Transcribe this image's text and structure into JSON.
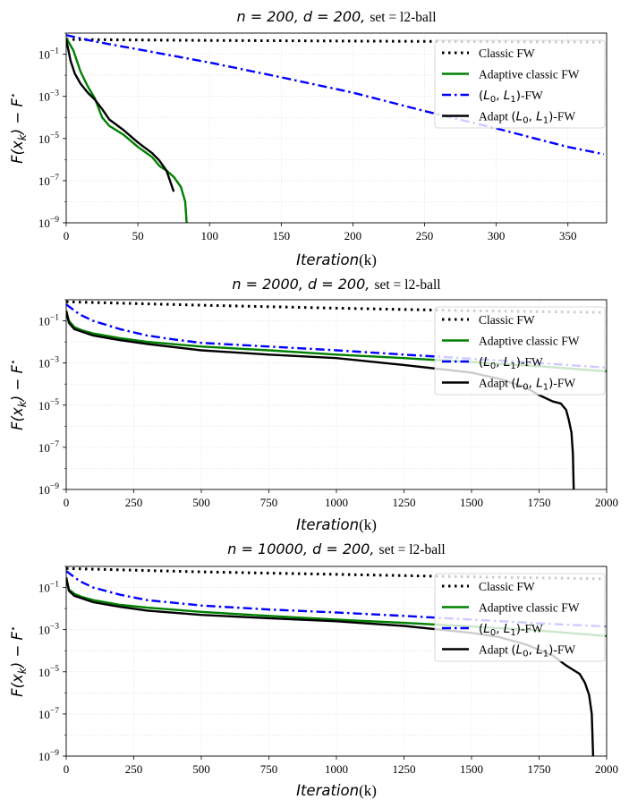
{
  "figure": {
    "ylabel": "F(x_k) − F*",
    "xlabel": "Iteration(k)"
  },
  "legend": {
    "placement": "upper-right"
  },
  "colors": {
    "classic": "#000000",
    "adaptive": "#008000",
    "l0l1": "#0000ff",
    "adapt_l0l1": "#000000"
  },
  "chart_data": [
    {
      "type": "line",
      "title": {
        "math": "n = 200, d = 200,",
        "rest": "set = l2-ball"
      },
      "xlim": [
        0,
        377
      ],
      "ylim": [
        1e-09,
        1
      ],
      "yscale": "log",
      "grid": true,
      "x_ticks": [
        0,
        50,
        100,
        150,
        200,
        250,
        300,
        350
      ],
      "y_ticks": [
        {
          "exp": -1,
          "value": 0.1
        },
        {
          "exp": -3,
          "value": 0.001
        },
        {
          "exp": -5,
          "value": 1e-05
        },
        {
          "exp": -7,
          "value": 1e-07
        },
        {
          "exp": -9,
          "value": 1e-09
        }
      ],
      "series": [
        {
          "name": "Classic FW",
          "style": "dotted",
          "color": "#000000",
          "points": [
            [
              0,
              0.5
            ],
            [
              100,
              0.45
            ],
            [
              200,
              0.42
            ],
            [
              300,
              0.39
            ],
            [
              375,
              0.37
            ]
          ]
        },
        {
          "name": "Adaptive classic FW",
          "style": "solid",
          "color": "#008000",
          "points": [
            [
              0,
              0.6
            ],
            [
              5,
              0.15
            ],
            [
              10,
              0.015
            ],
            [
              15,
              0.003
            ],
            [
              20,
              0.0008
            ],
            [
              25,
              0.0001
            ],
            [
              30,
              4e-05
            ],
            [
              40,
              1.5e-05
            ],
            [
              50,
              4e-06
            ],
            [
              60,
              1.3e-06
            ],
            [
              65,
              5e-07
            ],
            [
              70,
              3e-07
            ],
            [
              75,
              1.5e-07
            ],
            [
              80,
              5e-08
            ],
            [
              83,
              1e-08
            ],
            [
              84,
              1e-09
            ]
          ]
        },
        {
          "name": "(L0, L1)-FW",
          "style": "dashdot",
          "color": "#0000ff",
          "points": [
            [
              0,
              0.8
            ],
            [
              20,
              0.4
            ],
            [
              50,
              0.17
            ],
            [
              100,
              0.04
            ],
            [
              150,
              0.008
            ],
            [
              200,
              0.0015
            ],
            [
              250,
              0.0002
            ],
            [
              300,
              3e-05
            ],
            [
              350,
              4e-06
            ],
            [
              375,
              1.8e-06
            ]
          ]
        },
        {
          "name": "Adapt (L0, L1)-FW",
          "style": "solid",
          "color": "#000000",
          "points": [
            [
              0,
              0.5
            ],
            [
              3,
              0.05
            ],
            [
              6,
              0.012
            ],
            [
              10,
              0.004
            ],
            [
              15,
              0.0015
            ],
            [
              20,
              0.0007
            ],
            [
              25,
              0.00025
            ],
            [
              30,
              8e-05
            ],
            [
              40,
              2.5e-05
            ],
            [
              50,
              6.5e-06
            ],
            [
              60,
              2e-06
            ],
            [
              65,
              9e-07
            ],
            [
              70,
              3e-07
            ],
            [
              75,
              3e-08
            ]
          ]
        }
      ]
    },
    {
      "type": "line",
      "title": {
        "math": "n = 2000, d = 200,",
        "rest": "set = l2-ball"
      },
      "xlim": [
        0,
        2000
      ],
      "ylim": [
        1e-09,
        1
      ],
      "yscale": "log",
      "grid": true,
      "x_ticks": [
        0,
        250,
        500,
        750,
        1000,
        1250,
        1500,
        1750,
        2000
      ],
      "y_ticks": [
        {
          "exp": -1,
          "value": 0.1
        },
        {
          "exp": -3,
          "value": 0.001
        },
        {
          "exp": -5,
          "value": 1e-05
        },
        {
          "exp": -7,
          "value": 1e-07
        },
        {
          "exp": -9,
          "value": 1e-09
        }
      ],
      "series": [
        {
          "name": "Classic FW",
          "style": "dotted",
          "color": "#000000",
          "points": [
            [
              0,
              0.8
            ],
            [
              500,
              0.55
            ],
            [
              1000,
              0.4
            ],
            [
              1500,
              0.3
            ],
            [
              1980,
              0.25
            ]
          ]
        },
        {
          "name": "Adaptive classic FW",
          "style": "solid",
          "color": "#008000",
          "points": [
            [
              0,
              0.3
            ],
            [
              10,
              0.1
            ],
            [
              30,
              0.05
            ],
            [
              60,
              0.035
            ],
            [
              100,
              0.025
            ],
            [
              200,
              0.015
            ],
            [
              300,
              0.01
            ],
            [
              500,
              0.006
            ],
            [
              750,
              0.004
            ],
            [
              1000,
              0.0025
            ],
            [
              1250,
              0.0017
            ],
            [
              1500,
              0.0011
            ],
            [
              1750,
              0.0007
            ],
            [
              2000,
              0.0004
            ]
          ]
        },
        {
          "name": "(L0, L1)-FW",
          "style": "dashdot",
          "color": "#0000ff",
          "points": [
            [
              0,
              0.6
            ],
            [
              50,
              0.2
            ],
            [
              100,
              0.1
            ],
            [
              200,
              0.04
            ],
            [
              300,
              0.02
            ],
            [
              400,
              0.013
            ],
            [
              500,
              0.009
            ],
            [
              750,
              0.006
            ],
            [
              1000,
              0.004
            ],
            [
              1250,
              0.0025
            ],
            [
              1500,
              0.0016
            ],
            [
              1750,
              0.001
            ],
            [
              2000,
              0.0006
            ]
          ]
        },
        {
          "name": "Adapt (L0, L1)-FW",
          "style": "solid",
          "color": "#000000",
          "points": [
            [
              0,
              0.3
            ],
            [
              10,
              0.08
            ],
            [
              30,
              0.04
            ],
            [
              60,
              0.03
            ],
            [
              100,
              0.02
            ],
            [
              200,
              0.012
            ],
            [
              300,
              0.008
            ],
            [
              500,
              0.004
            ],
            [
              750,
              0.0025
            ],
            [
              1000,
              0.0017
            ],
            [
              1250,
              0.0008
            ],
            [
              1500,
              0.00035
            ],
            [
              1600,
              0.00018
            ],
            [
              1700,
              7e-05
            ],
            [
              1750,
              3e-05
            ],
            [
              1800,
              1.5e-05
            ],
            [
              1830,
              1.2e-05
            ],
            [
              1850,
              6e-06
            ],
            [
              1860,
              2e-06
            ],
            [
              1870,
              5e-07
            ],
            [
              1875,
              5e-08
            ],
            [
              1878,
              1e-09
            ]
          ]
        }
      ]
    },
    {
      "type": "line",
      "title": {
        "math": "n = 10000, d = 200,",
        "rest": "set = l2-ball"
      },
      "xlim": [
        0,
        2000
      ],
      "ylim": [
        1e-09,
        1
      ],
      "yscale": "log",
      "grid": true,
      "x_ticks": [
        0,
        250,
        500,
        750,
        1000,
        1250,
        1500,
        1750,
        2000
      ],
      "y_ticks": [
        {
          "exp": -1,
          "value": 0.1
        },
        {
          "exp": -3,
          "value": 0.001
        },
        {
          "exp": -5,
          "value": 1e-05
        },
        {
          "exp": -7,
          "value": 1e-07
        },
        {
          "exp": -9,
          "value": 1e-09
        }
      ],
      "series": [
        {
          "name": "Classic FW",
          "style": "dotted",
          "color": "#000000",
          "points": [
            [
              0,
              0.8
            ],
            [
              500,
              0.55
            ],
            [
              1000,
              0.42
            ],
            [
              1500,
              0.32
            ],
            [
              1980,
              0.26
            ]
          ]
        },
        {
          "name": "Adaptive classic FW",
          "style": "solid",
          "color": "#008000",
          "points": [
            [
              0,
              0.3
            ],
            [
              10,
              0.08
            ],
            [
              30,
              0.05
            ],
            [
              60,
              0.035
            ],
            [
              100,
              0.025
            ],
            [
              200,
              0.015
            ],
            [
              300,
              0.011
            ],
            [
              500,
              0.007
            ],
            [
              750,
              0.0045
            ],
            [
              1000,
              0.003
            ],
            [
              1250,
              0.0021
            ],
            [
              1500,
              0.0014
            ],
            [
              1750,
              0.0009
            ],
            [
              2000,
              0.0005
            ]
          ]
        },
        {
          "name": "(L0, L1)-FW",
          "style": "dashdot",
          "color": "#0000ff",
          "points": [
            [
              0,
              0.6
            ],
            [
              50,
              0.2
            ],
            [
              100,
              0.1
            ],
            [
              200,
              0.045
            ],
            [
              300,
              0.025
            ],
            [
              500,
              0.014
            ],
            [
              750,
              0.009
            ],
            [
              1000,
              0.0065
            ],
            [
              1250,
              0.0045
            ],
            [
              1500,
              0.003
            ],
            [
              1750,
              0.002
            ],
            [
              2000,
              0.0014
            ]
          ]
        },
        {
          "name": "Adapt (L0, L1)-FW",
          "style": "solid",
          "color": "#000000",
          "points": [
            [
              0,
              0.3
            ],
            [
              10,
              0.07
            ],
            [
              30,
              0.04
            ],
            [
              60,
              0.03
            ],
            [
              100,
              0.02
            ],
            [
              200,
              0.012
            ],
            [
              300,
              0.008
            ],
            [
              500,
              0.005
            ],
            [
              750,
              0.0035
            ],
            [
              1000,
              0.0025
            ],
            [
              1250,
              0.0015
            ],
            [
              1500,
              0.0007
            ],
            [
              1600,
              0.00045
            ],
            [
              1700,
              0.0002
            ],
            [
              1800,
              6e-05
            ],
            [
              1850,
              2e-05
            ],
            [
              1900,
              8e-06
            ],
            [
              1920,
              3e-06
            ],
            [
              1935,
              8e-07
            ],
            [
              1945,
              1e-07
            ],
            [
              1950,
              1e-09
            ]
          ]
        }
      ]
    }
  ]
}
